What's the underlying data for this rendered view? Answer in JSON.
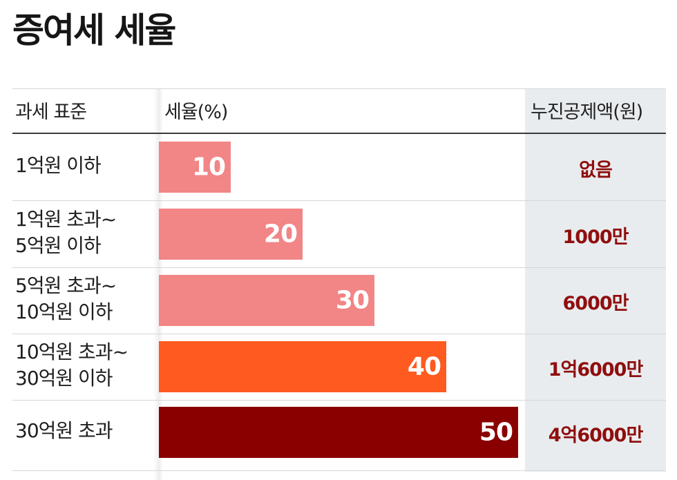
{
  "title": "증여세 세율",
  "headers": {
    "base": "과세 표준",
    "rate": "세율(%)",
    "deduction": "누진공제액(원)"
  },
  "rows": [
    {
      "label": "1억원 이하",
      "rate": "10",
      "deduction": "없음"
    },
    {
      "label": "1억원 초과~\n5억원 이하",
      "rate": "20",
      "deduction": "1000만"
    },
    {
      "label": "5억원 초과~\n10억원 이하",
      "rate": "30",
      "deduction": "6000만"
    },
    {
      "label": "10억원 초과~\n30억원 이하",
      "rate": "40",
      "deduction": "1억6000만"
    },
    {
      "label": "30억원 초과",
      "rate": "50",
      "deduction": "4억6000만"
    }
  ],
  "colors": {
    "bar_light": "#f28586",
    "bar_orange": "#ff5a1f",
    "bar_dark": "#8a0000",
    "deduction_text": "#8f0e0e",
    "deduction_bg": "#e9ecef"
  },
  "chart_data": {
    "type": "bar",
    "title": "증여세 세율",
    "categories": [
      "1억원 이하",
      "1억원 초과~5억원 이하",
      "5억원 초과~10억원 이하",
      "10억원 초과~30억원 이하",
      "30억원 초과"
    ],
    "values": [
      10,
      20,
      30,
      40,
      50
    ],
    "xlabel": "과세 표준",
    "ylabel": "세율(%)",
    "ylim": [
      0,
      50
    ],
    "orientation": "horizontal",
    "annotations": [
      "없음",
      "1000만",
      "6000만",
      "1억6000만",
      "4억6000만"
    ]
  }
}
